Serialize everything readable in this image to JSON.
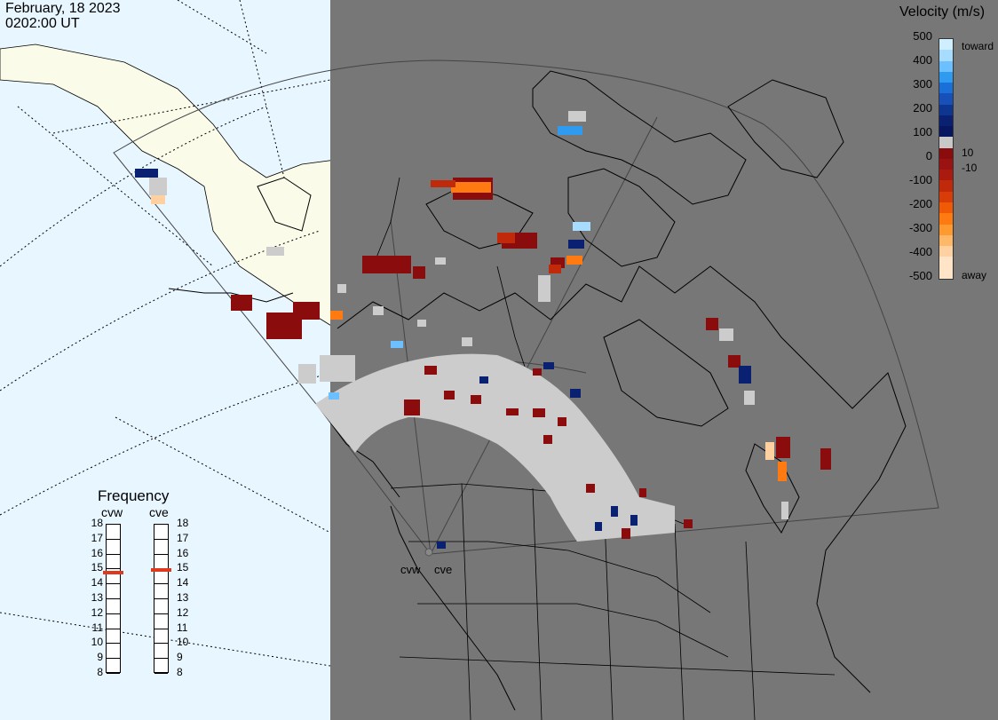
{
  "header": {
    "date": "February, 18 2023",
    "time": "0202:00 UT"
  },
  "velocity_legend": {
    "title": "Velocity (m/s)",
    "ticks": [
      "500",
      "400",
      "300",
      "200",
      "100",
      "0",
      "-100",
      "-200",
      "-300",
      "-400",
      "-500"
    ],
    "side_labels": {
      "toward": "toward",
      "ten": "10",
      "minus_ten": "-10",
      "away": "away"
    },
    "colors": [
      "#cfeeff",
      "#a8dcff",
      "#6cc0ff",
      "#2e9bf0",
      "#1a6fd8",
      "#1650b8",
      "#0e3590",
      "#0a2070",
      "#081660",
      "#c8c8c8",
      "#8a0c0c",
      "#9a1212",
      "#aa1a0e",
      "#c02a0a",
      "#d83c08",
      "#f05a06",
      "#ff7a10",
      "#ff9a30",
      "#ffb868",
      "#ffd0a0",
      "#ffe4c8",
      "#ffe4c8"
    ]
  },
  "frequency_legend": {
    "title": "Frequency",
    "radars": [
      {
        "name": "cvw",
        "value_mhz": 14.7
      },
      {
        "name": "cve",
        "value_mhz": 14.9
      }
    ],
    "scale": [
      "18",
      "17",
      "16",
      "15",
      "14",
      "13",
      "12",
      "11",
      "10",
      "9",
      "8"
    ]
  },
  "map": {
    "radar_site_labels": [
      "cvw",
      "cve"
    ],
    "background_colors": {
      "ocean": "#e8f6ff",
      "land_night": "#777777",
      "land_day": "#fbfbe9"
    }
  }
}
